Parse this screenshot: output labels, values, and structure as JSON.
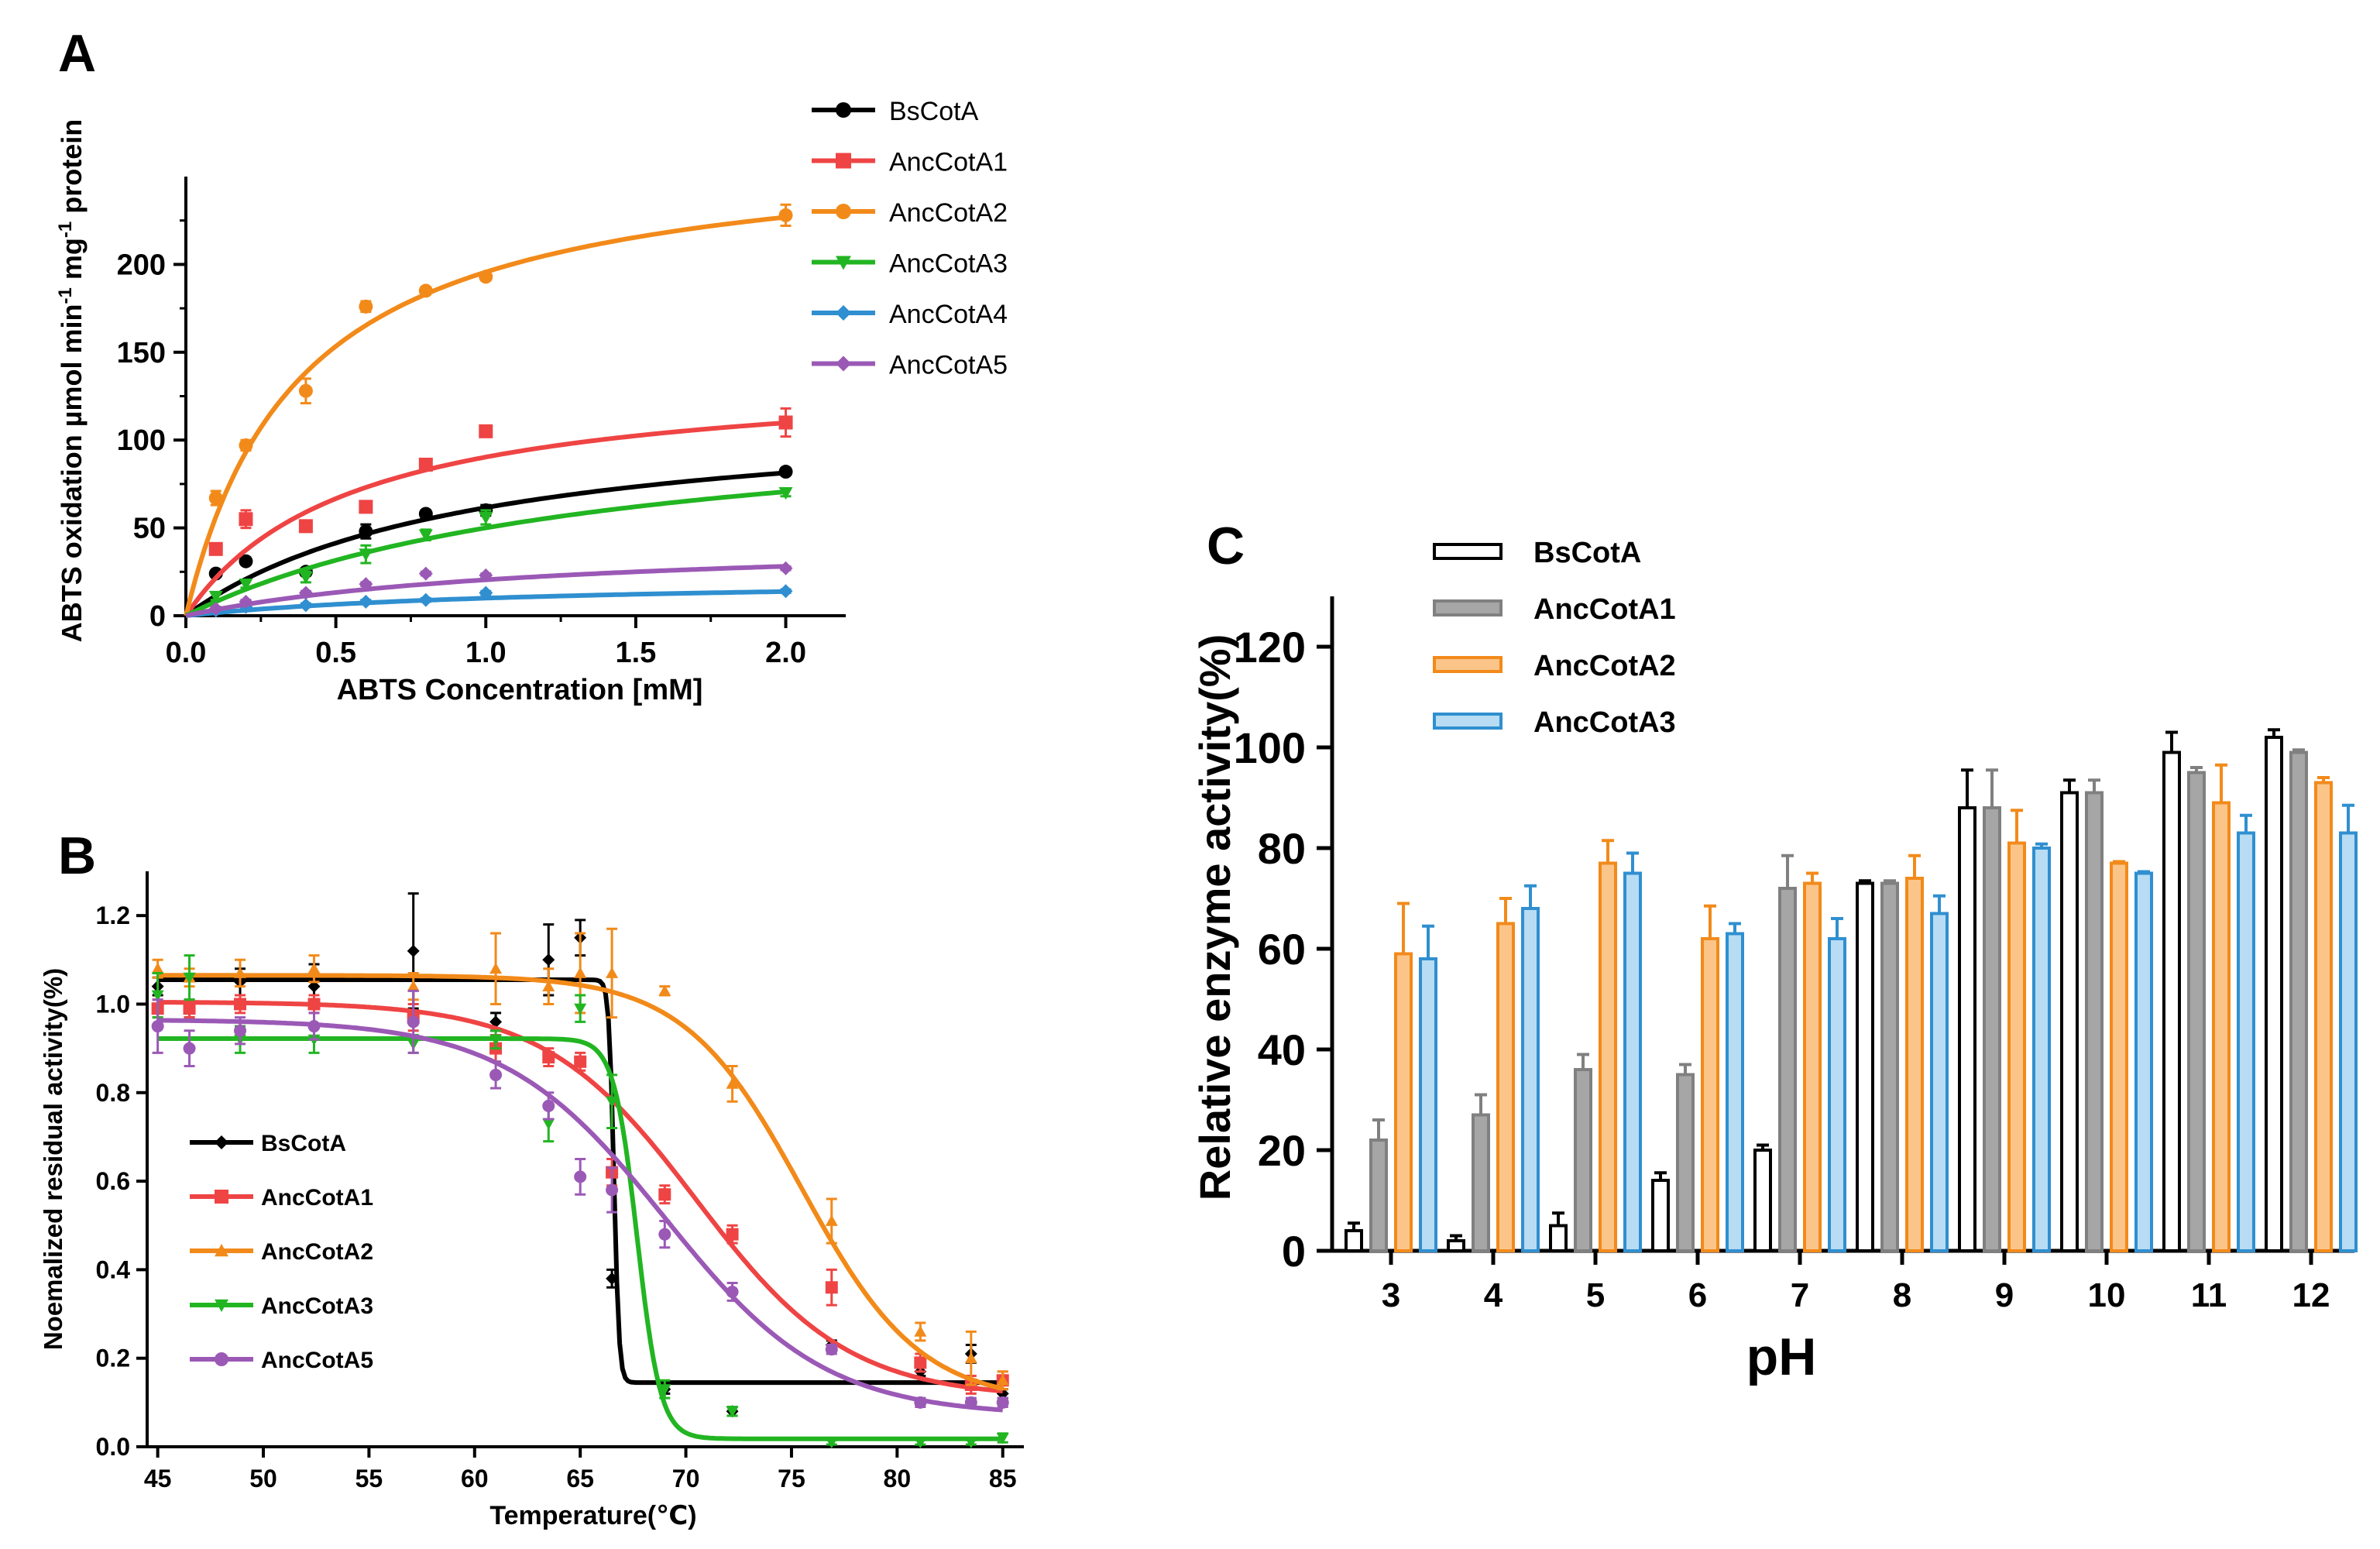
{
  "chart_data": [
    {
      "panel": "A",
      "type": "line",
      "xlabel": "ABTS Concentration [mM]",
      "ylabel_parts": [
        "ABTS oxidation µmol min",
        "-1",
        " mg",
        "-1",
        " protein"
      ],
      "xlim": [
        0,
        2.2
      ],
      "ylim": [
        0,
        250
      ],
      "xticks": [
        0,
        0.5,
        1,
        1.5,
        2
      ],
      "xtick_labels": [
        "0.0",
        "0.5",
        "1.0",
        "1.5",
        "2.0"
      ],
      "yticks": [
        0,
        50,
        100,
        150,
        200
      ],
      "ytick_labels": [
        "0",
        "50",
        "100",
        "150",
        "200"
      ],
      "legend_position": "top-right",
      "x": [
        0.1,
        0.2,
        0.4,
        0.6,
        0.8,
        1.0,
        2.0
      ],
      "series": [
        {
          "name": "BsCotA",
          "color": "#000000",
          "marker": "circle",
          "values": [
            24,
            31,
            25,
            48,
            58,
            60,
            82
          ],
          "errors": [
            1.5,
            2,
            2,
            4,
            2,
            3,
            2
          ],
          "fit": {
            "vmax": 120,
            "km": 0.95
          }
        },
        {
          "name": "AncCotA1",
          "color": "#ef4444",
          "marker": "square",
          "values": [
            38,
            55,
            51,
            62,
            86,
            105,
            110
          ],
          "errors": [
            3,
            5,
            3,
            3,
            3,
            3,
            8
          ],
          "fit": {
            "vmax": 140,
            "km": 0.55
          }
        },
        {
          "name": "AncCotA2",
          "color": "#f28a1a",
          "marker": "circle",
          "values": [
            67,
            97,
            128,
            176,
            185,
            193,
            228
          ],
          "errors": [
            4,
            3,
            7,
            3,
            2,
            2,
            6
          ],
          "fit": {
            "vmax": 270,
            "km": 0.38
          }
        },
        {
          "name": "AncCotA3",
          "color": "#22b522",
          "marker": "triangle-down",
          "values": [
            11,
            18,
            22,
            35,
            46,
            56,
            70
          ],
          "errors": [
            2,
            2,
            3,
            5,
            3,
            4,
            2
          ],
          "fit": {
            "vmax": 120,
            "km": 1.4
          }
        },
        {
          "name": "AncCotA4",
          "color": "#2f8fd0",
          "marker": "diamond",
          "values": [
            3,
            5,
            6,
            8,
            9,
            13,
            14
          ],
          "errors": [
            1,
            1,
            1,
            1,
            1,
            1,
            1
          ],
          "fit": {
            "vmax": 22,
            "km": 1.2
          }
        },
        {
          "name": "AncCotA5",
          "color": "#9b59b6",
          "marker": "diamond",
          "values": [
            4,
            8,
            13,
            18,
            24,
            23,
            27
          ],
          "errors": [
            1,
            1,
            1,
            1,
            1,
            1,
            1
          ],
          "fit": {
            "vmax": 45,
            "km": 1.2
          }
        }
      ]
    },
    {
      "panel": "B",
      "type": "line",
      "xlabel": "Temperature(℃)",
      "ylabel": "Noemalized residual activity(%)",
      "xlim": [
        44.5,
        86
      ],
      "ylim": [
        0,
        1.3
      ],
      "xticks": [
        45,
        50,
        55,
        60,
        65,
        70,
        75,
        80,
        85
      ],
      "xtick_labels": [
        "45",
        "50",
        "55",
        "60",
        "65",
        "70",
        "75",
        "80",
        "85"
      ],
      "yticks": [
        0,
        0.2,
        0.4,
        0.6,
        0.8,
        1.0,
        1.2
      ],
      "ytick_labels": [
        "0.0",
        "0.2",
        "0.4",
        "0.6",
        "0.8",
        "1.0",
        "1.2"
      ],
      "legend_position": "bottom-left",
      "series": [
        {
          "name": "BsCotA",
          "color": "#000000",
          "marker": "diamond",
          "x": [
            45,
            46.5,
            48.9,
            52.4,
            57.1,
            61,
            63.5,
            65,
            66.5,
            69,
            72.2,
            76.9,
            81.1,
            83.5,
            85
          ],
          "values": [
            1.04,
            0.99,
            1.05,
            1.04,
            1.12,
            0.96,
            1.1,
            1.15,
            0.38,
            0.13,
            0.08,
            0.23,
            0.17,
            0.21,
            0.12
          ],
          "errors": [
            0.02,
            0.02,
            0.03,
            0.05,
            0.13,
            0.02,
            0.08,
            0.04,
            0.02,
            0.01,
            0.01,
            0.01,
            0.01,
            0.02,
            0.01
          ],
          "fit": {
            "top": 1.055,
            "bottom": 0.145,
            "t50": 66.6,
            "slope": 0.12
          }
        },
        {
          "name": "AncCotA1",
          "color": "#ef4444",
          "marker": "square",
          "x": [
            45,
            46.5,
            48.9,
            52.4,
            57.1,
            61,
            63.5,
            65,
            66.5,
            69,
            72.2,
            76.9,
            81.1,
            83.5,
            85
          ],
          "values": [
            0.99,
            0.99,
            1.0,
            1.0,
            0.97,
            0.9,
            0.88,
            0.87,
            0.62,
            0.57,
            0.48,
            0.36,
            0.19,
            0.14,
            0.15
          ],
          "errors": [
            0.02,
            0.02,
            0.02,
            0.02,
            0.03,
            0.03,
            0.02,
            0.02,
            0.03,
            0.02,
            0.02,
            0.04,
            0.02,
            0.02,
            0.02
          ],
          "fit": {
            "top": 1.005,
            "bottom": 0.11,
            "t50": 70.5,
            "slope": 3.6
          }
        },
        {
          "name": "AncCotA2",
          "color": "#f28a1a",
          "marker": "triangle-up",
          "x": [
            45,
            46.5,
            48.9,
            52.4,
            57.1,
            61,
            63.5,
            65,
            66.5,
            69,
            72.2,
            76.9,
            81.1,
            83.5,
            85
          ],
          "values": [
            1.08,
            1.06,
            1.07,
            1.08,
            1.04,
            1.08,
            1.04,
            1.07,
            1.07,
            1.03,
            0.82,
            0.51,
            0.26,
            0.2,
            0.15
          ],
          "errors": [
            0.02,
            0.02,
            0.03,
            0.03,
            0.03,
            0.08,
            0.04,
            0.09,
            0.1,
            0.01,
            0.04,
            0.05,
            0.02,
            0.06,
            0.02
          ],
          "fit": {
            "top": 1.065,
            "bottom": 0.1,
            "t50": 75.5,
            "slope": 2.8
          }
        },
        {
          "name": "AncCotA3",
          "color": "#22b522",
          "marker": "triangle-down",
          "x": [
            45,
            46.5,
            48.9,
            52.4,
            57.1,
            61,
            63.5,
            65,
            66.5,
            69,
            72.2,
            76.9,
            81.1,
            83.5,
            85
          ],
          "values": [
            1.02,
            1.06,
            0.92,
            0.92,
            0.91,
            0.92,
            0.73,
            0.99,
            0.78,
            0.13,
            0.08,
            0.01,
            0.01,
            0.01,
            0.02
          ],
          "errors": [
            0.05,
            0.05,
            0.03,
            0.03,
            0.02,
            0.02,
            0.04,
            0.03,
            0.06,
            0.02,
            0.01,
            0.005,
            0.005,
            0.005,
            0.01
          ],
          "fit": {
            "top": 0.922,
            "bottom": 0.018,
            "t50": 67.7,
            "slope": 0.55
          }
        },
        {
          "name": "AncCotA5",
          "color": "#9b59b6",
          "marker": "circle",
          "x": [
            45,
            46.5,
            48.9,
            52.4,
            57.1,
            61,
            63.5,
            65,
            66.5,
            69,
            72.2,
            76.9,
            81.1,
            83.5,
            85
          ],
          "values": [
            0.95,
            0.9,
            0.94,
            0.95,
            0.96,
            0.84,
            0.77,
            0.61,
            0.58,
            0.48,
            0.35,
            0.22,
            0.1,
            0.1,
            0.1
          ],
          "errors": [
            0.06,
            0.04,
            0.03,
            0.03,
            0.07,
            0.03,
            0.03,
            0.04,
            0.05,
            0.03,
            0.02,
            0.01,
            0.01,
            0.01,
            0.01
          ],
          "fit": {
            "top": 0.965,
            "bottom": 0.07,
            "t50": 69.0,
            "slope": 3.8
          }
        }
      ]
    },
    {
      "panel": "C",
      "type": "bar",
      "xlabel": "pH",
      "ylabel": "Relative enzyme activity(%)",
      "ylim": [
        0,
        130
      ],
      "yticks": [
        0,
        20,
        40,
        60,
        80,
        100,
        120
      ],
      "ytick_labels": [
        "0",
        "20",
        "40",
        "60",
        "80",
        "100",
        "120"
      ],
      "categories": [
        "3",
        "4",
        "5",
        "6",
        "7",
        "8",
        "9",
        "10",
        "11",
        "12"
      ],
      "legend_position": "top-left",
      "series": [
        {
          "name": "BsCotA",
          "fill": "#ffffff",
          "stroke": "#000000",
          "values": [
            4,
            2,
            5,
            14,
            20,
            73,
            88,
            91,
            99,
            102
          ],
          "errors": [
            1.5,
            1,
            2.5,
            1.5,
            1,
            0.5,
            7.5,
            2.5,
            4,
            1.5
          ]
        },
        {
          "name": "AncCotA1",
          "fill": "#a6a6a6",
          "stroke": "#808080",
          "values": [
            22,
            27,
            36,
            35,
            72,
            73,
            88,
            91,
            95,
            99
          ],
          "errors": [
            4,
            4,
            3,
            2,
            6.5,
            0.5,
            7.5,
            2.5,
            1,
            0.5
          ]
        },
        {
          "name": "AncCotA2",
          "fill": "#fbc58a",
          "stroke": "#f28a1a",
          "values": [
            59,
            65,
            77,
            62,
            73,
            74,
            81,
            77,
            89,
            93
          ],
          "errors": [
            10,
            5,
            4.5,
            6.5,
            2,
            4.5,
            6.5,
            0.3,
            7.5,
            1
          ]
        },
        {
          "name": "AncCotA3",
          "fill": "#b7dcf3",
          "stroke": "#2f8fd0",
          "values": [
            58,
            68,
            75,
            63,
            62,
            67,
            80,
            75,
            83,
            83
          ],
          "errors": [
            6.5,
            4.5,
            4,
            2,
            4,
            3.5,
            0.8,
            0.3,
            3.5,
            5.5
          ]
        }
      ]
    }
  ]
}
